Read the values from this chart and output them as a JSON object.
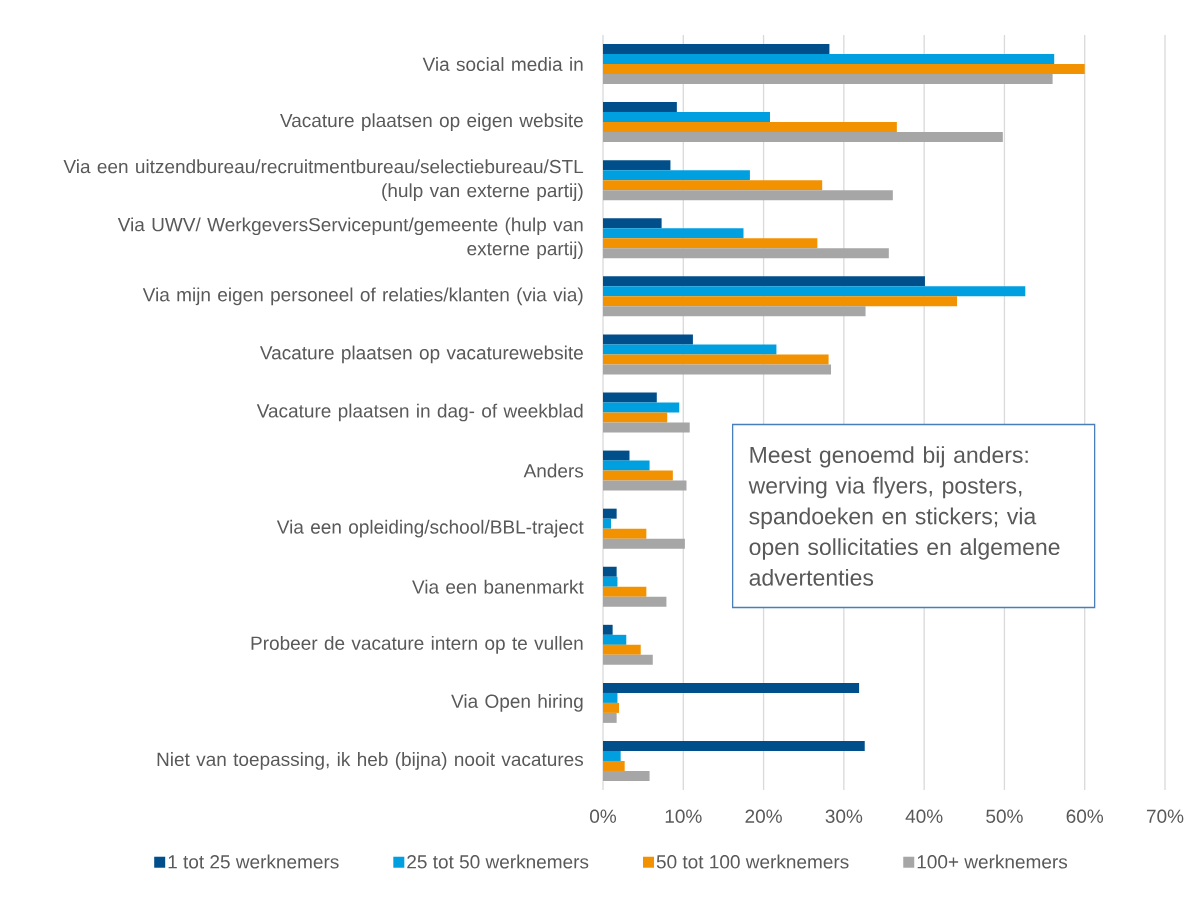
{
  "chart_data": {
    "type": "bar",
    "orientation": "horizontal",
    "categories": [
      "Via social media in",
      "Vacature plaatsen op eigen website",
      "Via een uitzendbureau/recruitmentbureau/selectiebureau/STL (hulp van externe partij)",
      "Via UWV/ WerkgeversServicepunt/gemeente (hulp van externe partij)",
      "Via mijn eigen personeel of relaties/klanten (via via)",
      "Vacature plaatsen op vacaturewebsite",
      "Vacature plaatsen in dag- of weekblad",
      "Anders",
      "Via een opleiding/school/BBL-traject",
      "Via een banenmarkt",
      "Probeer de vacature intern op te vullen",
      "Via Open hiring",
      "Niet van toepassing, ik heb (bijna) nooit vacatures"
    ],
    "series": [
      {
        "name": "1 tot 25 werknemers",
        "color": "#004f8a",
        "values": [
          28.2,
          9.2,
          8.4,
          7.3,
          40.1,
          11.2,
          6.7,
          3.3,
          1.7,
          1.7,
          1.2,
          31.9,
          32.6
        ]
      },
      {
        "name": "25 tot 50 werknemers",
        "color": "#009fe0",
        "values": [
          56.2,
          20.8,
          18.3,
          17.5,
          52.6,
          21.6,
          9.5,
          5.8,
          1.0,
          1.8,
          2.9,
          1.8,
          2.2
        ]
      },
      {
        "name": "50 tot 100 werknemers",
        "color": "#f39200",
        "values": [
          60.0,
          36.6,
          27.3,
          26.7,
          44.1,
          28.1,
          8.0,
          8.7,
          5.4,
          5.4,
          4.7,
          2.0,
          2.7
        ]
      },
      {
        "name": "100+ werknemers",
        "color": "#a6a6a6",
        "values": [
          56.0,
          49.8,
          36.1,
          35.6,
          32.7,
          28.4,
          10.8,
          10.4,
          10.2,
          7.9,
          6.2,
          1.7,
          5.8
        ]
      }
    ],
    "xlim": [
      0,
      70
    ],
    "xticks": [
      {
        "value": 0,
        "label": "0%"
      },
      {
        "value": 10,
        "label": "10%"
      },
      {
        "value": 20,
        "label": "20%"
      },
      {
        "value": 30,
        "label": "30%"
      },
      {
        "value": 40,
        "label": "40%"
      },
      {
        "value": 50,
        "label": "50%"
      },
      {
        "value": 60,
        "label": "60%"
      },
      {
        "value": 70,
        "label": "70%"
      }
    ],
    "grid": "x",
    "legend": "bottom",
    "annotations": [
      "Meest genoemd bij anders: werving via flyers, posters, spandoeken en stickers; via open sollicitaties en algemene advertenties"
    ]
  }
}
